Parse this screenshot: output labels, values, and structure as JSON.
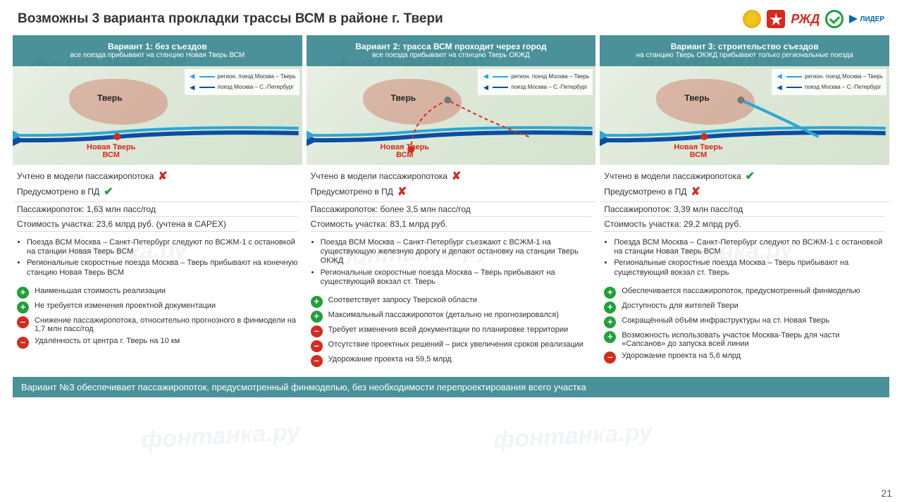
{
  "page": {
    "title": "Возможны 3 варианта прокладки трассы ВСМ в районе г. Твери",
    "page_number": "21",
    "footer": "Вариант №3 обеспечивает пассажиропоток, предусмотренный финмоделью, без необходимости перепроектирования всего участка",
    "teal": "#4a9199",
    "green": "#21a038",
    "red": "#d52b1e",
    "logos": {
      "rzd": "РЖД",
      "lider": "ЛИДЕР"
    }
  },
  "map": {
    "city_label": "Тверь",
    "station_label_l1": "Новая Тверь",
    "station_label_l2": "ВСМ",
    "legend": {
      "regional": "регион. поезд Москва – Тверь",
      "express": "поезд Москва – С.-Петербург",
      "regional_color": "#2aa7d6",
      "express_color": "#0a4ea2"
    }
  },
  "check_labels": {
    "flow": "Учтено в модели пассажиропотока",
    "pd": "Предусмотрено в ПД"
  },
  "variants": [
    {
      "title": "Вариант 1: без съездов",
      "subtitle": "все поезда прибывают на станцию Новая Тверь ВСМ",
      "flow_ok": false,
      "pd_ok": true,
      "stat1": "Пассажиропоток: 1,63 млн пасс/год",
      "stat2": "Стоимость участка: 23,6 млрд руб. (учтена в CAPEX)",
      "bullets": [
        "Поезда ВСМ Москва – Санкт-Петербург следуют по ВСЖМ-1 с остановкой на станции Новая Тверь ВСМ",
        "Региональные скоростные поезда Москва – Тверь прибывают на конечную станцию Новая Тверь ВСМ"
      ],
      "pros": [
        "Наименьшая стоимость реализации",
        "Не требуется изменения проектной документации"
      ],
      "cons": [
        "Снижение пассажиропотока, относительно прогнозного в финмодели на 1,7 млн пасс/год",
        "Удалённость от центра г. Тверь на 10 км"
      ],
      "route": "straight"
    },
    {
      "title": "Вариант 2: трасса ВСМ проходит через город",
      "subtitle": "все поезда прибывают на станцию Тверь ОКЖД",
      "flow_ok": false,
      "pd_ok": false,
      "stat1": "Пассажиропоток: более 3,5 млн пасс/год",
      "stat2": "Стоимость участка: 83,1 млрд руб.",
      "bullets": [
        "Поезда ВСМ Москва – Санкт-Петербург съезжают с ВСЖМ-1 на существующую железную дорогу и делают остановку на станции Тверь ОКЖД",
        "Региональные скоростные поезда Москва – Тверь прибывают на существующий вокзал ст. Тверь"
      ],
      "pros": [
        "Соответствует запросу Тверской области",
        "Максимальный пассажиропоток (детально не прогнозировался)"
      ],
      "cons": [
        "Требует изменения всей документации по планировке территории",
        "Отсутствие проектных решений – риск увеличения сроков реализации",
        "Удорожание проекта на 59,5 млрд"
      ],
      "route": "through_city"
    },
    {
      "title": "Вариант 3: строительство съездов",
      "subtitle": "на станцию Тверь ОКЖД прибывают только региональные поезда",
      "flow_ok": true,
      "pd_ok": false,
      "stat1": "Пассажиропоток: 3,39 млн пасс/год",
      "stat2": "Стоимость участка: 29,2 млрд руб.",
      "bullets": [
        "Поезда ВСМ Москва – Санкт-Петербург следуют по ВСЖМ-1 с остановкой на станции Новая Тверь ВСМ",
        "Региональные скоростные поезда Москва – Тверь прибывают на существующий вокзал ст. Тверь"
      ],
      "pros": [
        "Обеспечивается пассажиропоток, предусмотренный финмоделью",
        "Доступность для жителей Твери",
        "Сокращённый объём инфраструктуры на ст. Новая Тверь",
        "Возможность использовать участок Москва-Тверь для части «Сапсанов» до запуска всей линии"
      ],
      "cons": [
        "Удорожание проекта на 5,6 млрд"
      ],
      "route": "branch"
    }
  ]
}
